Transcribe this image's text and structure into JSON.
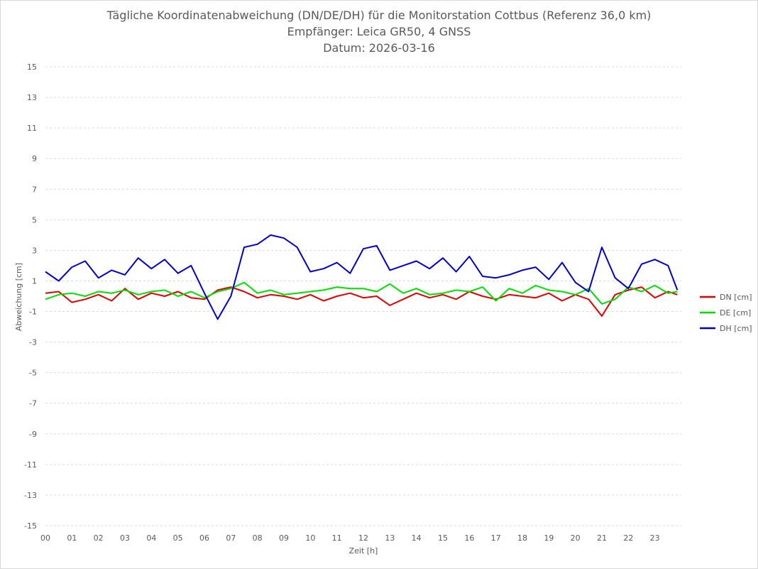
{
  "chart_data": {
    "type": "line",
    "title": "Tägliche Koordinatenabweichung (DN/DE/DH) für die Monitorstation Cottbus (Referenz 36,0 km)",
    "subtitle_lines": [
      "Empfänger: Leica GR50, 4 GNSS",
      "Datum: 2026-03-16"
    ],
    "xlabel": "Zeit [h]",
    "ylabel": "Abweichung [cm]",
    "xlim": [
      0,
      24
    ],
    "ylim": [
      -15,
      15
    ],
    "x_ticks": [
      "00",
      "01",
      "02",
      "03",
      "04",
      "05",
      "06",
      "07",
      "08",
      "09",
      "10",
      "11",
      "12",
      "13",
      "14",
      "15",
      "16",
      "17",
      "18",
      "19",
      "20",
      "21",
      "22",
      "23"
    ],
    "y_ticks": [
      15,
      13,
      11,
      9,
      7,
      5,
      3,
      1,
      -1,
      -3,
      -5,
      -7,
      -9,
      -11,
      -13,
      -15
    ],
    "grid": true,
    "legend_position": "right",
    "x": [
      0.0,
      0.5,
      1.0,
      1.5,
      2.0,
      2.5,
      3.0,
      3.5,
      4.0,
      4.5,
      5.0,
      5.5,
      6.0,
      6.5,
      7.0,
      7.5,
      8.0,
      8.5,
      9.0,
      9.5,
      10.0,
      10.5,
      11.0,
      11.5,
      12.0,
      12.5,
      13.0,
      13.5,
      14.0,
      14.5,
      15.0,
      15.5,
      16.0,
      16.5,
      17.0,
      17.5,
      18.0,
      18.5,
      19.0,
      19.5,
      20.0,
      20.5,
      21.0,
      21.5,
      22.0,
      22.5,
      23.0,
      23.5,
      23.85
    ],
    "series": [
      {
        "name": "DN [cm]",
        "color": "#e00000",
        "values": [
          0.2,
          0.3,
          -0.4,
          -0.2,
          0.1,
          -0.3,
          0.5,
          -0.2,
          0.2,
          0.0,
          0.3,
          -0.1,
          -0.2,
          0.4,
          0.6,
          0.3,
          -0.1,
          0.1,
          0.0,
          -0.2,
          0.1,
          -0.3,
          0.0,
          0.2,
          -0.1,
          0.0,
          -0.6,
          -0.2,
          0.2,
          -0.1,
          0.1,
          -0.2,
          0.3,
          0.0,
          -0.2,
          0.1,
          0.0,
          -0.1,
          0.2,
          -0.3,
          0.1,
          -0.2,
          -1.3,
          0.1,
          0.4,
          0.6,
          -0.1,
          0.3,
          0.1
        ]
      },
      {
        "name": "DE [cm]",
        "color": "#00e000",
        "values": [
          -0.2,
          0.1,
          0.2,
          0.0,
          0.3,
          0.2,
          0.4,
          0.1,
          0.3,
          0.4,
          0.0,
          0.3,
          -0.1,
          0.3,
          0.5,
          0.9,
          0.2,
          0.4,
          0.1,
          0.2,
          0.3,
          0.4,
          0.6,
          0.5,
          0.5,
          0.3,
          0.8,
          0.2,
          0.5,
          0.1,
          0.2,
          0.4,
          0.3,
          0.6,
          -0.3,
          0.5,
          0.2,
          0.7,
          0.4,
          0.3,
          0.1,
          0.5,
          -0.5,
          -0.2,
          0.6,
          0.3,
          0.7,
          0.2,
          0.3
        ]
      },
      {
        "name": "DH [cm]",
        "color": "#0000cc",
        "values": [
          1.6,
          1.0,
          1.9,
          2.3,
          1.2,
          1.7,
          1.4,
          2.5,
          1.8,
          2.4,
          1.5,
          2.0,
          0.2,
          -1.5,
          0.0,
          3.2,
          3.4,
          4.0,
          3.8,
          3.2,
          1.6,
          1.8,
          2.2,
          1.5,
          3.1,
          3.3,
          1.7,
          2.0,
          2.3,
          1.8,
          2.5,
          1.6,
          2.6,
          1.3,
          1.2,
          1.4,
          1.7,
          1.9,
          1.1,
          2.2,
          0.9,
          0.3,
          3.2,
          1.2,
          0.5,
          2.1,
          2.4,
          2.0,
          0.4
        ]
      }
    ]
  }
}
